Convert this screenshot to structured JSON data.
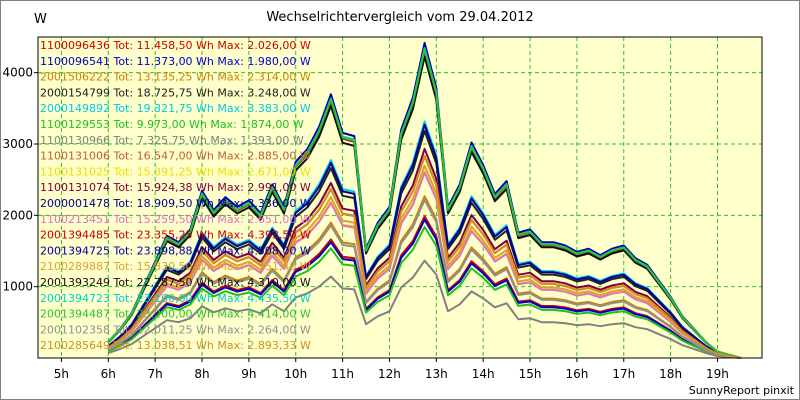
{
  "chart_data": {
    "type": "line",
    "title": "Wechselrichtervergleich vom 29.04.2012",
    "ylabel": "W",
    "footer": "SunnyReport pinxit",
    "xlim": [
      4.5,
      19.95
    ],
    "ylim": [
      0,
      4500
    ],
    "grid": true,
    "legend_placement": "top-left",
    "x_ticks": [
      {
        "value": 5,
        "label": "5h"
      },
      {
        "value": 6,
        "label": "6h"
      },
      {
        "value": 7,
        "label": "7h"
      },
      {
        "value": 8,
        "label": "8h"
      },
      {
        "value": 9,
        "label": "9h"
      },
      {
        "value": 10,
        "label": "10h"
      },
      {
        "value": 11,
        "label": "11h"
      },
      {
        "value": 12,
        "label": "12h"
      },
      {
        "value": 13,
        "label": "13h"
      },
      {
        "value": 14,
        "label": "14h"
      },
      {
        "value": 15,
        "label": "15h"
      },
      {
        "value": 16,
        "label": "16h"
      },
      {
        "value": 17,
        "label": "17h"
      },
      {
        "value": 18,
        "label": "18h"
      },
      {
        "value": 19,
        "label": "19h"
      }
    ],
    "y_ticks": [
      1000,
      2000,
      3000,
      4000
    ],
    "x": [
      6.0,
      6.25,
      6.5,
      6.75,
      7.0,
      7.25,
      7.5,
      7.75,
      8.0,
      8.25,
      8.5,
      8.75,
      9.0,
      9.25,
      9.5,
      9.75,
      10.0,
      10.25,
      10.5,
      10.75,
      11.0,
      11.25,
      11.5,
      11.75,
      12.0,
      12.25,
      12.5,
      12.75,
      13.0,
      13.25,
      13.5,
      13.75,
      14.0,
      14.25,
      14.5,
      14.75,
      15.0,
      15.25,
      15.5,
      15.75,
      16.0,
      16.25,
      16.5,
      16.75,
      17.0,
      17.25,
      17.5,
      17.75,
      18.0,
      18.25,
      18.5,
      18.75,
      19.0,
      19.25,
      19.5
    ],
    "profile": [
      0.05,
      0.09,
      0.14,
      0.22,
      0.3,
      0.38,
      0.36,
      0.4,
      0.52,
      0.46,
      0.5,
      0.47,
      0.49,
      0.45,
      0.54,
      0.47,
      0.61,
      0.65,
      0.72,
      0.82,
      0.7,
      0.69,
      0.34,
      0.42,
      0.47,
      0.71,
      0.81,
      0.98,
      0.84,
      0.47,
      0.54,
      0.67,
      0.6,
      0.51,
      0.55,
      0.39,
      0.4,
      0.36,
      0.36,
      0.35,
      0.33,
      0.34,
      0.32,
      0.34,
      0.35,
      0.31,
      0.29,
      0.24,
      0.19,
      0.13,
      0.09,
      0.05,
      0.02,
      0.01,
      0.0
    ],
    "series": [
      {
        "name": "1100096436",
        "label": "1100096436 Tot: 11.458,50 Wh Max: 2.026,00 W",
        "color": "#cc0000",
        "max": 2026
      },
      {
        "name": "1100096541",
        "label": "1100096541 Tot: 11.373,00 Wh Max: 1.980,00 W",
        "color": "#0000cc",
        "max": 1980
      },
      {
        "name": "2001506222",
        "label": "2001506222 Tot: 13.135,25 Wh Max: 2.314,00 W",
        "color": "#d08000",
        "max": 2314
      },
      {
        "name": "2000154799",
        "label": "2000154799 Tot: 18.725,75 Wh Max: 3.248,00 W",
        "color": "#202020",
        "max": 3248
      },
      {
        "name": "2000149892",
        "label": "2000149892 Tot: 19.321,75 Wh Max: 3.383,00 W",
        "color": "#00c8e6",
        "max": 3383
      },
      {
        "name": "1100129553",
        "label": "1100129553 Tot: 9.973,00 Wh Max: 1.874,00 W",
        "color": "#20c020",
        "max": 1874
      },
      {
        "name": "1100130966",
        "label": "1100130966 Tot: 7.325,75 Wh Max: 1.393,00 W",
        "color": "#808080",
        "max": 1393
      },
      {
        "name": "1100131006",
        "label": "1100131006 Tot: 16.547,00 Wh Max: 2.885,00 W",
        "color": "#c06030",
        "max": 2885
      },
      {
        "name": "1100131025",
        "label": "1100131025 Tot: 15.391,25 Wh Max: 2.671,00 W",
        "color": "#e8e000",
        "max": 2671
      },
      {
        "name": "1100131074",
        "label": "1100131074 Tot: 15.924,38 Wh Max: 2.991,00 W",
        "color": "#800040",
        "max": 2991
      },
      {
        "name": "2000001478",
        "label": "2000001478 Tot: 18.909,50 Wh Max: 3.336,00 W",
        "color": "#000090",
        "max": 3336
      },
      {
        "name": "1100213451",
        "label": "1100213451 Tot: 15.259,50 Wh Max: 2.651,00 W",
        "color": "#e070c0",
        "max": 2651
      },
      {
        "name": "2001394485",
        "label": "2001394485 Tot: 23.355,25 Wh Max: 4.393,50 W",
        "color": "#c00000",
        "max": 4393
      },
      {
        "name": "2001394725",
        "label": "2001394725 Tot: 23.898,88 Wh Max: 4.508,00 W",
        "color": "#0000a0",
        "max": 4508
      },
      {
        "name": "2100289887",
        "label": "2100289887 Tot: 15.830,50 Wh Max: 2.751,40 W",
        "color": "#e0a030",
        "max": 2751
      },
      {
        "name": "2001393249",
        "label": "2001393249 Tot: 22.787,50 Wh Max: 4.310,00 W",
        "color": "#101010",
        "max": 4310
      },
      {
        "name": "2001394723",
        "label": "2001394723 Tot: 23.100,00 Wh Max: 4.435,50 W",
        "color": "#00d0d0",
        "max": 4435
      },
      {
        "name": "2001394487",
        "label": "2001394487 Tot: 23.200,00 Wh Max: 4.414,00 W",
        "color": "#30c030",
        "max": 4414
      },
      {
        "name": "2001102358",
        "label": "2001102358 Tot: 12.011,25 Wh Max: 2.264,00 W",
        "color": "#909090",
        "max": 2264
      },
      {
        "name": "2100285649",
        "label": "2100285649 Tot: 13.038,51 Wh Max: 2.893,33 W",
        "color": "#d09020",
        "max": 2893
      }
    ]
  }
}
